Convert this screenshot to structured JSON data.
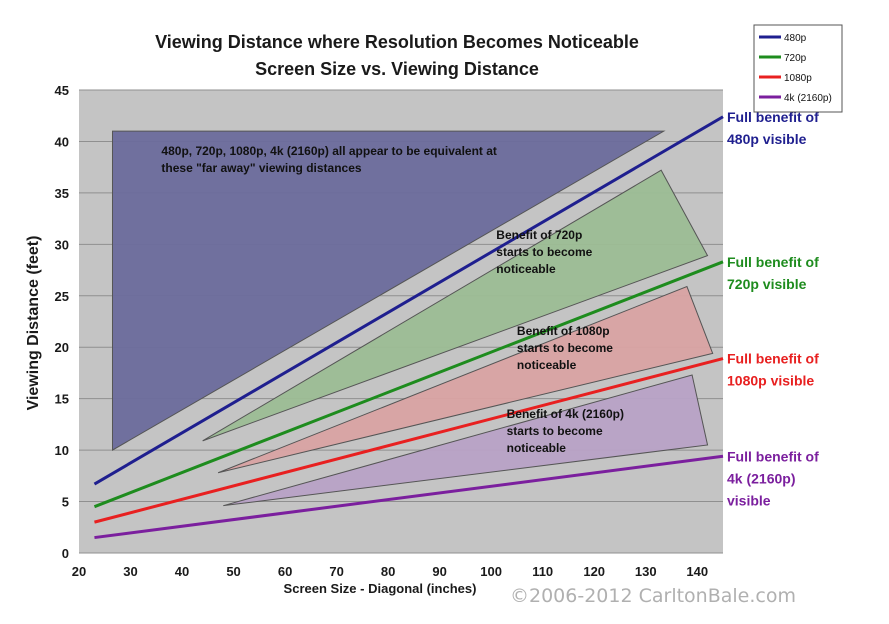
{
  "chart_data": {
    "type": "line",
    "title": "Viewing Distance where Resolution Becomes Noticeable",
    "subtitle": "Screen Size vs. Viewing Distance",
    "xlabel": "Screen Size - Diagonal (inches)",
    "ylabel": "Viewing Distance (feet)",
    "xlim": [
      20,
      145
    ],
    "ylim": [
      0,
      45
    ],
    "xticks": [
      20,
      30,
      40,
      50,
      60,
      70,
      80,
      90,
      100,
      110,
      120,
      130,
      140
    ],
    "yticks": [
      0,
      5,
      10,
      15,
      20,
      25,
      30,
      35,
      40,
      45
    ],
    "grid": true,
    "legend_position": "top-right",
    "series": [
      {
        "name": "480p",
        "color": "#1f1f8f",
        "x": [
          23,
          145
        ],
        "y": [
          6.7,
          42.4
        ]
      },
      {
        "name": "720p",
        "color": "#1e8c1e",
        "x": [
          23,
          145
        ],
        "y": [
          4.5,
          28.3
        ]
      },
      {
        "name": "1080p",
        "color": "#e82020",
        "x": [
          23,
          145
        ],
        "y": [
          3.0,
          18.9
        ]
      },
      {
        "name": "4k (2160p)",
        "color": "#7b1f9e",
        "x": [
          23,
          145
        ],
        "y": [
          1.5,
          9.4
        ]
      }
    ],
    "regions": [
      {
        "color": "#6b6b9c",
        "points": [
          [
            26.5,
            41
          ],
          [
            133.5,
            41
          ],
          [
            26.5,
            10
          ]
        ],
        "label": [
          "480p, 720p, 1080p, 4k (2160p) all appear to be equivalent at",
          "these \"far away\" viewing distances"
        ],
        "label_x": 36,
        "label_y": 38.7
      },
      {
        "color": "#9cbd95",
        "points": [
          [
            44,
            10.9
          ],
          [
            133,
            37.2
          ],
          [
            142,
            28.9
          ]
        ],
        "label": [
          "Benefit of 720p",
          "starts to become",
          "noticeable"
        ],
        "label_x": 101,
        "label_y": 30.5
      },
      {
        "color": "#d9a3a3",
        "points": [
          [
            47,
            7.8
          ],
          [
            138,
            25.9
          ],
          [
            143,
            19.4
          ]
        ],
        "label": [
          "Benefit of 1080p",
          "starts to become",
          "noticeable"
        ],
        "label_x": 105,
        "label_y": 21.2
      },
      {
        "color": "#b8a2c6",
        "points": [
          [
            48,
            4.6
          ],
          [
            139,
            17.3
          ],
          [
            142,
            10.5
          ]
        ],
        "label": [
          "Benefit of 4k (2160p)",
          "starts to become",
          "noticeable"
        ],
        "label_x": 103,
        "label_y": 13.1
      }
    ],
    "end_labels": [
      {
        "series": "480p",
        "lines": [
          "Full benefit of",
          "480p visible"
        ]
      },
      {
        "series": "720p",
        "lines": [
          "Full benefit of",
          "720p visible"
        ]
      },
      {
        "series": "1080p",
        "lines": [
          "Full benefit of",
          "1080p visible"
        ]
      },
      {
        "series": "4k (2160p)",
        "lines": [
          "Full benefit of",
          "4k (2160p)",
          "visible"
        ]
      }
    ],
    "watermark": "©2006-2012 CarltonBale.com"
  }
}
